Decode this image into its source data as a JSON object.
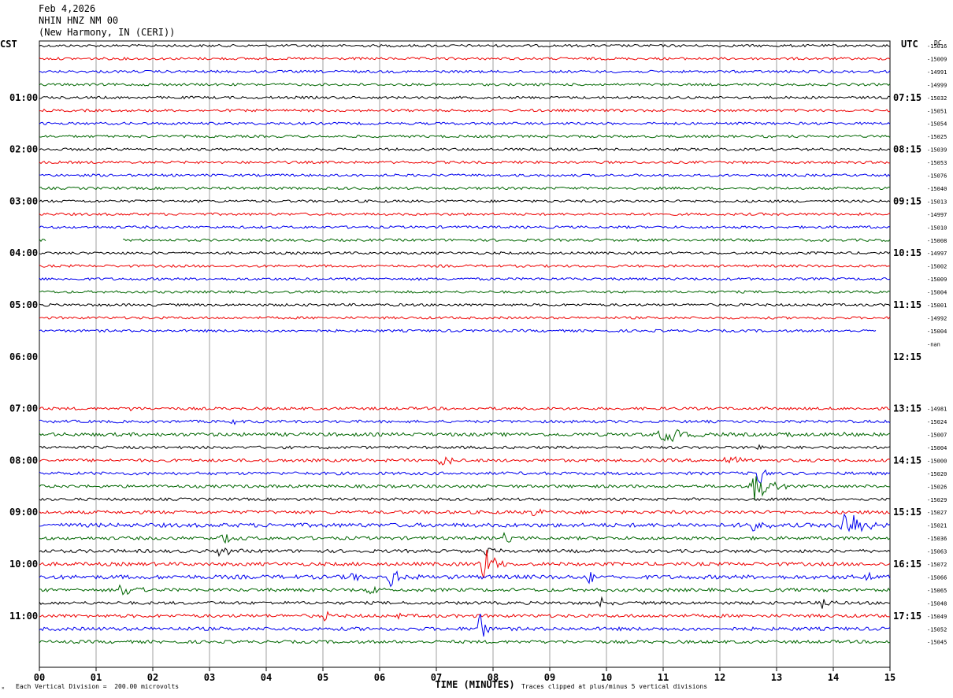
{
  "header": {
    "date": "Feb 4,2026",
    "station": "NHIN HNZ NM 00",
    "location": "(New Harmony, IN (CERI))"
  },
  "left_tz": "CST",
  "right_tz": "UTC",
  "dc_label": "DC",
  "footer": {
    "scale_note": "Each Vertical Division =  200.00 microvolts",
    "clip_note": "Traces clipped at plus/minus 5 vertical divisions",
    "corner_mark": "✕"
  },
  "colors": {
    "black": "#000000",
    "red": "#ee0000",
    "blue": "#0000ee",
    "green": "#006600",
    "grid": "#888888"
  },
  "chart_data": {
    "type": "line",
    "title": "",
    "xlabel": "TIME (MINUTES)",
    "ylabel": "",
    "xlim": [
      0,
      15
    ],
    "x_ticks": [
      "00",
      "01",
      "02",
      "03",
      "04",
      "05",
      "06",
      "07",
      "08",
      "09",
      "10",
      "11",
      "12",
      "13",
      "14",
      "15"
    ],
    "grid": "vertical every minute",
    "rows_per_hour": 4,
    "row_minutes": 15,
    "left_time_labels": [
      "01:00",
      "02:00",
      "03:00",
      "04:00",
      "05:00",
      "06:00",
      "07:00",
      "08:00",
      "09:00",
      "10:00",
      "11:00"
    ],
    "right_time_labels": [
      "07:15",
      "08:15",
      "09:15",
      "10:15",
      "11:15",
      "12:15",
      "13:15",
      "14:15",
      "15:15",
      "16:15",
      "17:15"
    ],
    "traces": [
      {
        "color": "black",
        "offset": "-15016",
        "amp": 1.0
      },
      {
        "color": "red",
        "offset": "-15009",
        "amp": 1.0
      },
      {
        "color": "blue",
        "offset": "-14991",
        "amp": 1.0
      },
      {
        "color": "green",
        "offset": "-14999",
        "amp": 1.0
      },
      {
        "color": "black",
        "offset": "-15032",
        "amp": 1.0
      },
      {
        "color": "red",
        "offset": "-15051",
        "amp": 1.0
      },
      {
        "color": "blue",
        "offset": "-15054",
        "amp": 1.0
      },
      {
        "color": "green",
        "offset": "-15025",
        "amp": 1.0
      },
      {
        "color": "black",
        "offset": "-15039",
        "amp": 1.0
      },
      {
        "color": "red",
        "offset": "-15053",
        "amp": 1.0
      },
      {
        "color": "blue",
        "offset": "-15076",
        "amp": 1.0
      },
      {
        "color": "green",
        "offset": "-15040",
        "amp": 1.0
      },
      {
        "color": "black",
        "offset": "-15013",
        "amp": 1.0
      },
      {
        "color": "red",
        "offset": "-14997",
        "amp": 1.0
      },
      {
        "color": "blue",
        "offset": "-15010",
        "amp": 1.0
      },
      {
        "color": "green",
        "offset": "-15008",
        "amp": 1.0,
        "gap": [
          0.13,
          1.45
        ]
      },
      {
        "color": "black",
        "offset": "-14997",
        "amp": 1.0
      },
      {
        "color": "red",
        "offset": "-15002",
        "amp": 1.0
      },
      {
        "color": "blue",
        "offset": "-15009",
        "amp": 1.0
      },
      {
        "color": "green",
        "offset": "-15004",
        "amp": 1.0
      },
      {
        "color": "black",
        "offset": "-15001",
        "amp": 1.0
      },
      {
        "color": "red",
        "offset": "-14992",
        "amp": 1.0
      },
      {
        "color": "blue",
        "offset": "-15004",
        "amp": 1.0,
        "end": 14.75
      },
      {
        "color": "",
        "offset": "-nan",
        "empty": true
      },
      {
        "color": "",
        "offset": "",
        "empty": true
      },
      {
        "color": "",
        "offset": "",
        "empty": true
      },
      {
        "color": "",
        "offset": "",
        "empty": true
      },
      {
        "color": "",
        "offset": "",
        "empty": true
      },
      {
        "color": "red",
        "offset": "-14981",
        "amp": 1.1,
        "events": [
          [
            1.6,
            4,
            0.08
          ]
        ]
      },
      {
        "color": "blue",
        "offset": "-15024",
        "amp": 1.1,
        "events": [
          [
            3.4,
            4,
            0.15
          ]
        ]
      },
      {
        "color": "green",
        "offset": "-15007",
        "amp": 1.4,
        "events": [
          [
            11.0,
            12,
            0.4
          ],
          [
            13.2,
            5,
            0.1
          ],
          [
            14.2,
            4,
            0.1
          ]
        ]
      },
      {
        "color": "black",
        "offset": "-15004",
        "amp": 1.1,
        "events": [
          [
            12.65,
            14,
            0.05
          ]
        ]
      },
      {
        "color": "red",
        "offset": "-15000",
        "amp": 1.2,
        "events": [
          [
            4.0,
            6,
            0.08
          ],
          [
            7.1,
            9,
            0.25
          ],
          [
            12.1,
            9,
            0.2
          ]
        ]
      },
      {
        "color": "blue",
        "offset": "-15020",
        "amp": 1.2,
        "events": [
          [
            12.65,
            28,
            0.1
          ]
        ]
      },
      {
        "color": "green",
        "offset": "-15026",
        "amp": 1.2,
        "events": [
          [
            12.6,
            22,
            0.3
          ]
        ]
      },
      {
        "color": "black",
        "offset": "-15029",
        "amp": 1.1
      },
      {
        "color": "red",
        "offset": "-15027",
        "amp": 1.3,
        "events": [
          [
            8.65,
            11,
            0.15
          ]
        ]
      },
      {
        "color": "blue",
        "offset": "-15021",
        "amp": 1.6,
        "events": [
          [
            12.5,
            8,
            0.3
          ],
          [
            14.2,
            24,
            0.4
          ]
        ]
      },
      {
        "color": "green",
        "offset": "-15036",
        "amp": 1.3,
        "events": [
          [
            3.2,
            8,
            0.2
          ],
          [
            8.2,
            9,
            0.1
          ]
        ]
      },
      {
        "color": "black",
        "offset": "-15063",
        "amp": 1.3,
        "events": [
          [
            3.2,
            9,
            0.2
          ],
          [
            7.85,
            12,
            0.15
          ]
        ]
      },
      {
        "color": "red",
        "offset": "-15072",
        "amp": 1.4,
        "events": [
          [
            7.8,
            32,
            0.2
          ]
        ]
      },
      {
        "color": "blue",
        "offset": "-15066",
        "amp": 1.6,
        "events": [
          [
            5.5,
            9,
            0.1
          ],
          [
            6.2,
            11,
            0.3
          ],
          [
            7.0,
            12,
            0.05
          ],
          [
            9.7,
            9,
            0.2
          ],
          [
            14.6,
            12,
            0.1
          ]
        ]
      },
      {
        "color": "green",
        "offset": "-15065",
        "amp": 1.3,
        "events": [
          [
            1.45,
            13,
            0.25
          ],
          [
            5.8,
            8,
            0.2
          ]
        ]
      },
      {
        "color": "black",
        "offset": "-15048",
        "amp": 1.2,
        "events": [
          [
            9.9,
            9,
            0.1
          ],
          [
            13.8,
            11,
            0.15
          ]
        ]
      },
      {
        "color": "red",
        "offset": "-15049",
        "amp": 1.3,
        "events": [
          [
            5.0,
            9,
            0.1
          ],
          [
            6.3,
            5,
            0.05
          ]
        ]
      },
      {
        "color": "blue",
        "offset": "-15052",
        "amp": 1.4,
        "events": [
          [
            7.75,
            30,
            0.1
          ]
        ]
      },
      {
        "color": "green",
        "offset": "-15045",
        "amp": 1.2
      }
    ]
  }
}
